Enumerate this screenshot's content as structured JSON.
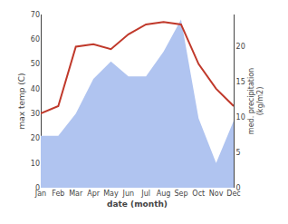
{
  "chart_data": {
    "type": "line",
    "xlabel": "date (month)",
    "ylabel": "max temp (C)",
    "y2label": "med. precipitation\n(kg/m2)",
    "categories": [
      "Jan",
      "Feb",
      "Mar",
      "Apr",
      "May",
      "Jun",
      "Jul",
      "Aug",
      "Sep",
      "Oct",
      "Nov",
      "Dec"
    ],
    "series": [
      {
        "type": "area",
        "color": "#b0c4f0",
        "values": [
          21,
          21,
          30,
          44,
          51,
          45,
          45,
          55,
          68,
          28,
          10,
          27
        ]
      },
      {
        "type": "line",
        "color": "#c0392b",
        "values": [
          30,
          33,
          57,
          58,
          56,
          62,
          66,
          67,
          66,
          50,
          40,
          33
        ]
      }
    ],
    "ylim": [
      0,
      70
    ],
    "yticks": [
      0,
      10,
      20,
      30,
      40,
      50,
      60,
      70
    ],
    "y2lim": [
      0,
      24.5
    ],
    "y2ticks": [
      0,
      5,
      10,
      15,
      20
    ],
    "grid": false
  }
}
